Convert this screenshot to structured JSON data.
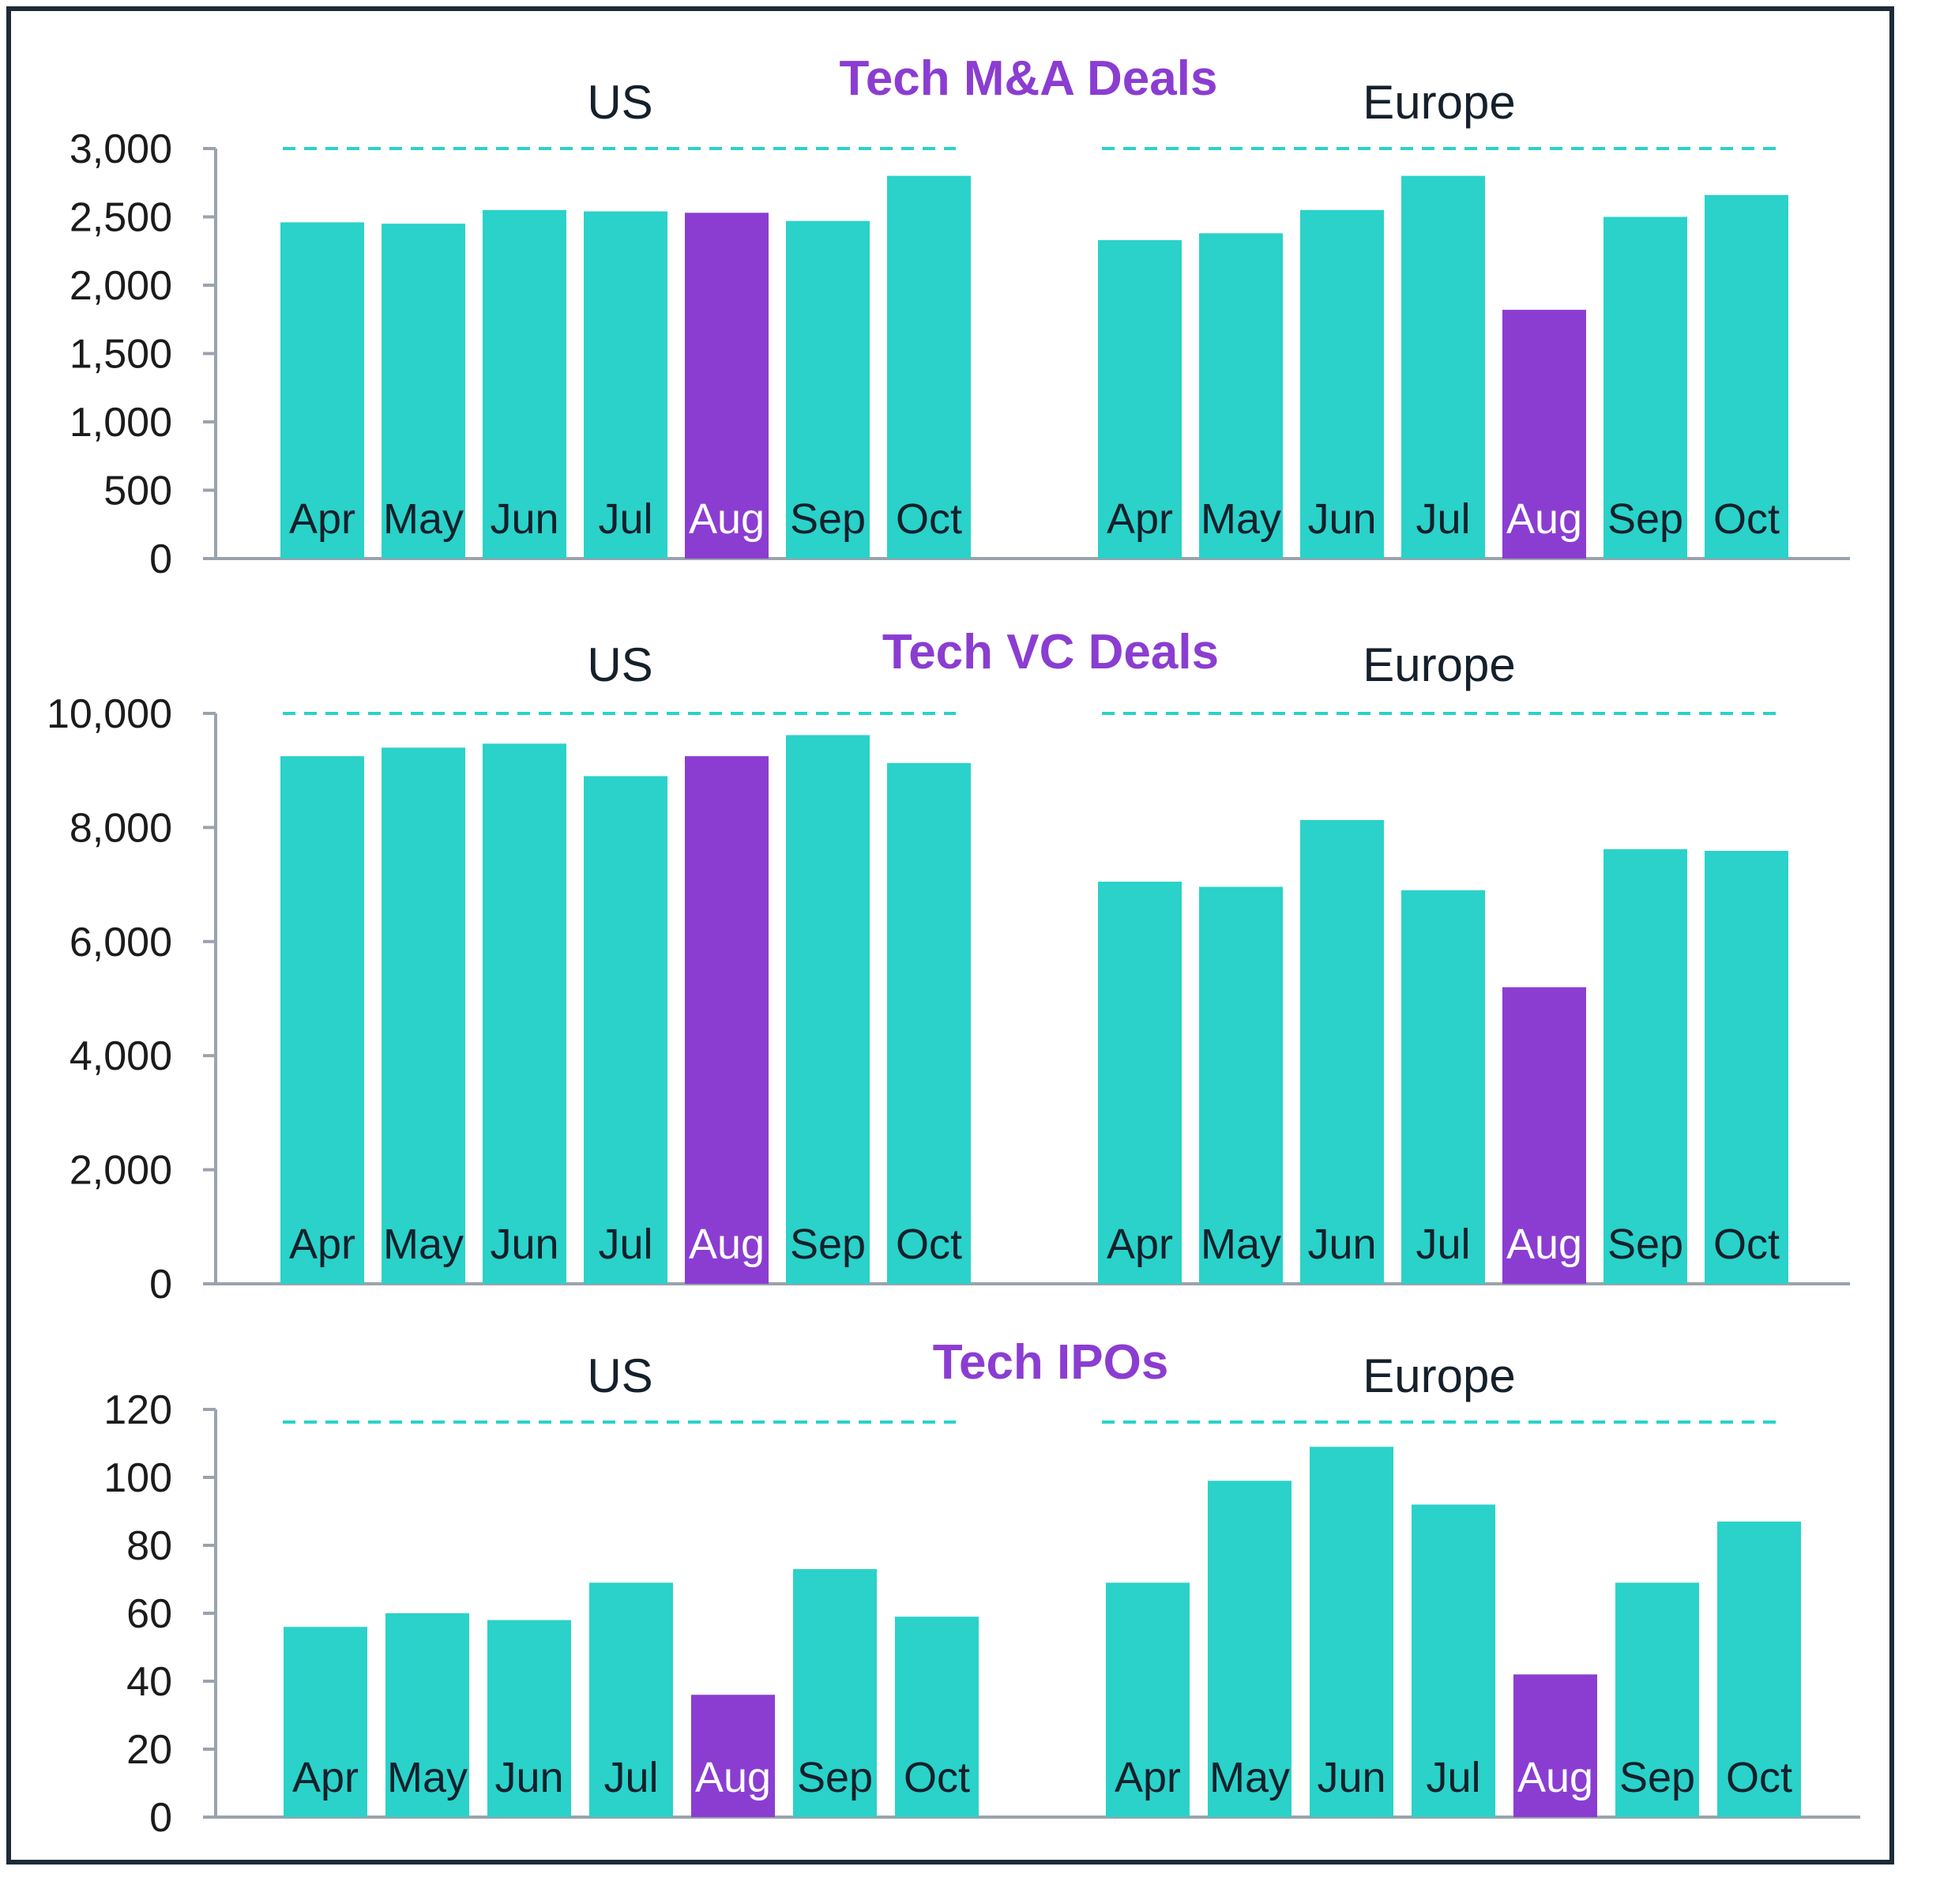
{
  "colors": {
    "bar": "#2ad2c9",
    "highlight": "#8b3dd1",
    "title": "#8b3dd1",
    "axis": "#9aa3ad",
    "dash": "#2ad2c9"
  },
  "chart_data": [
    {
      "type": "bar",
      "title": "Tech M&A Deals",
      "ylim": [
        0,
        3000
      ],
      "yticks": [
        0,
        500,
        1000,
        1500,
        2000,
        2500,
        3000
      ],
      "ytick_labels": [
        "0",
        "500",
        "1,000",
        "1,500",
        "2,000",
        "2,500",
        "3,000"
      ],
      "categories": [
        "Apr",
        "May",
        "Jun",
        "Jul",
        "Aug",
        "Sep",
        "Oct"
      ],
      "highlight": "Aug",
      "series": [
        {
          "name": "US",
          "values": [
            2460,
            2450,
            2550,
            2540,
            2530,
            2470,
            2800
          ]
        },
        {
          "name": "Europe",
          "values": [
            2330,
            2380,
            2550,
            2800,
            1820,
            2500,
            2660
          ]
        }
      ]
    },
    {
      "type": "bar",
      "title": "Tech VC Deals",
      "ylim": [
        0,
        10000
      ],
      "yticks": [
        0,
        2000,
        4000,
        6000,
        8000,
        10000
      ],
      "ytick_labels": [
        "0",
        "2,000",
        "4,000",
        "6,000",
        "8,000",
        "10,000"
      ],
      "categories": [
        "Apr",
        "May",
        "Jun",
        "Jul",
        "Aug",
        "Sep",
        "Oct"
      ],
      "highlight": "Aug",
      "series": [
        {
          "name": "US",
          "values": [
            9250,
            9400,
            9470,
            8900,
            9250,
            9620,
            9130
          ]
        },
        {
          "name": "Europe",
          "values": [
            7050,
            6960,
            8130,
            6900,
            5200,
            7620,
            7590
          ]
        }
      ]
    },
    {
      "type": "bar",
      "title": "Tech IPOs",
      "ylim": [
        0,
        120
      ],
      "yticks": [
        0,
        20,
        40,
        60,
        80,
        100,
        120
      ],
      "ytick_labels": [
        "0",
        "20",
        "40",
        "60",
        "80",
        "100",
        "120"
      ],
      "categories": [
        "Apr",
        "May",
        "Jun",
        "Jul",
        "Aug",
        "Sep",
        "Oct"
      ],
      "highlight": "Aug",
      "series": [
        {
          "name": "US",
          "values": [
            56,
            60,
            58,
            69,
            36,
            73,
            59
          ]
        },
        {
          "name": "Europe",
          "values": [
            69,
            99,
            109,
            92,
            42,
            69,
            87
          ]
        }
      ]
    }
  ]
}
